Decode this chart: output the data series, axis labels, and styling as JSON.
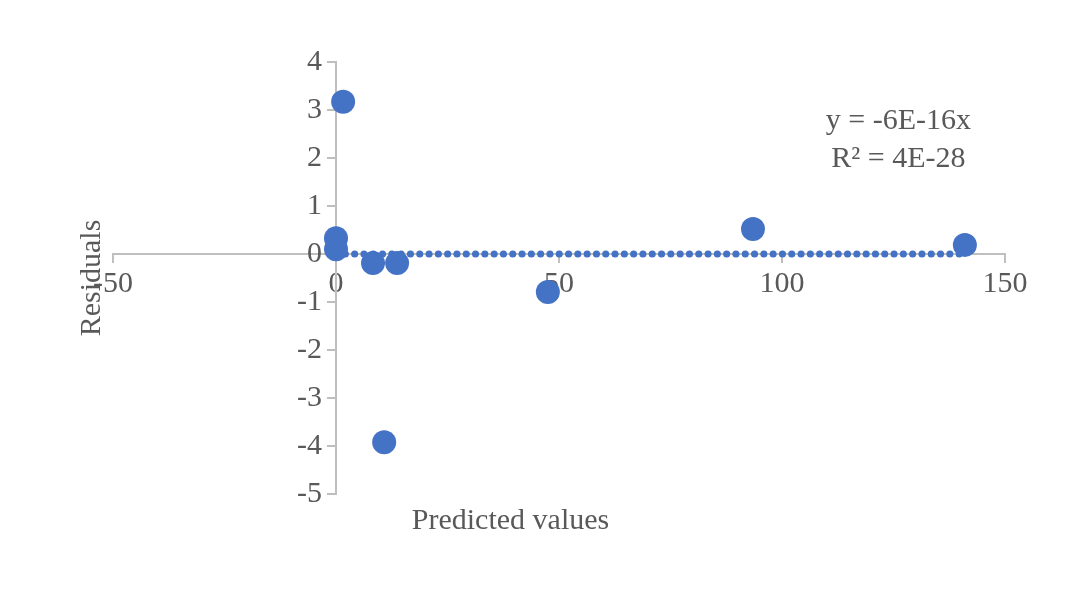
{
  "chart_data": {
    "type": "scatter",
    "xlabel": "Predicted values",
    "ylabel": "Residuals",
    "annotations": [
      "y = -6E-16x\nR² = 4E-28"
    ],
    "xlim": [
      -50,
      150
    ],
    "xticks": [
      -50,
      0,
      50,
      100,
      150
    ],
    "ylim": [
      -5,
      4
    ],
    "yticks": [
      -5,
      -4,
      -3,
      -2,
      -1,
      0,
      1,
      2,
      3,
      4
    ],
    "grid": false,
    "legend": false,
    "marker": "circle",
    "series": [
      {
        "color": "#4472c4",
        "x": [
          1.6,
          0,
          0,
          8.3,
          13.7,
          10.8,
          47.5,
          93.5,
          141
        ],
        "values": [
          3.17,
          0.33,
          0.1,
          -0.19,
          -0.19,
          -3.92,
          -0.79,
          0.52,
          0.19
        ]
      },
      {
        "type": "line",
        "color": "#4472c4",
        "line_style": "dotted",
        "marker": "none",
        "x": [
          0,
          141
        ],
        "values": [
          0,
          0
        ]
      }
    ]
  }
}
